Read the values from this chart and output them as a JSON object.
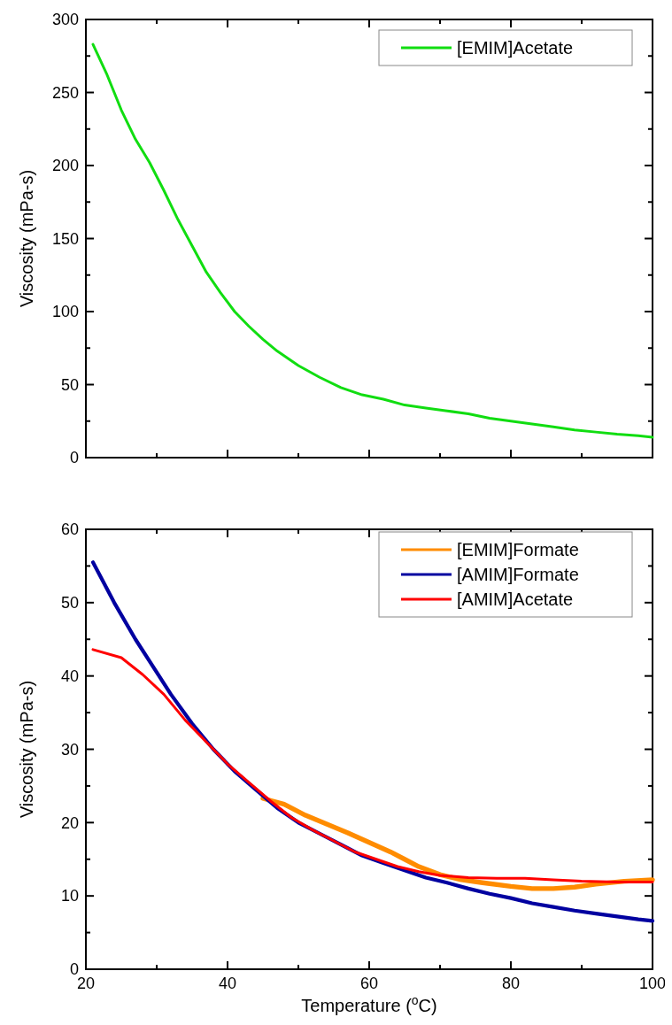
{
  "chart_data": [
    {
      "type": "line",
      "ylabel": "Viscosity (mPa-s)",
      "xlim": [
        20,
        100
      ],
      "ylim": [
        0,
        300
      ],
      "tick_labels": "y",
      "legend": "top right",
      "line_style": "solid",
      "xticks": [
        20,
        {
          "value": 30,
          "label": null
        },
        40,
        {
          "value": 50,
          "label": null
        },
        60,
        {
          "value": 70,
          "label": null
        },
        80,
        {
          "value": 90,
          "label": null
        },
        100
      ],
      "yticks": [
        0,
        {
          "value": 25,
          "label": null
        },
        50,
        {
          "value": 75,
          "label": null
        },
        100,
        {
          "value": 125,
          "label": null
        },
        150,
        {
          "value": 175,
          "label": null
        },
        200,
        {
          "value": 225,
          "label": null
        },
        250,
        {
          "value": 275,
          "label": null
        },
        300
      ],
      "series": [
        {
          "name": "[EMIM]Acetate",
          "color": "#11dd11",
          "x": [
            21,
            23,
            25,
            27,
            29,
            31,
            33,
            35,
            37,
            39,
            41,
            43,
            45,
            47,
            50,
            53,
            56,
            59,
            62,
            65,
            68,
            71,
            74,
            77,
            80,
            83,
            86,
            89,
            92,
            95,
            98,
            100
          ],
          "values": [
            283,
            262,
            238,
            218,
            202,
            183,
            163,
            145,
            127,
            113,
            100,
            90,
            81,
            73,
            63,
            55,
            48,
            43,
            40,
            36,
            34,
            32,
            30,
            27,
            25,
            23,
            21,
            19,
            17.5,
            16,
            15,
            14
          ]
        }
      ]
    },
    {
      "type": "line",
      "xlabel": "Temperature ($^{o}$C)",
      "ylabel": "Viscosity (mPa-s)",
      "xlim": [
        20,
        100
      ],
      "ylim": [
        0,
        60
      ],
      "legend": "top right",
      "line_style": "solid",
      "xticks": [
        20,
        {
          "value": 30,
          "label": null
        },
        40,
        {
          "value": 50,
          "label": null
        },
        60,
        {
          "value": 70,
          "label": null
        },
        80,
        {
          "value": 90,
          "label": null
        },
        100
      ],
      "yticks": [
        0,
        {
          "value": 5,
          "label": null
        },
        10,
        {
          "value": 15,
          "label": null
        },
        20,
        {
          "value": 25,
          "label": null
        },
        30,
        {
          "value": 35,
          "label": null
        },
        40,
        {
          "value": 45,
          "label": null
        },
        50,
        {
          "value": 55,
          "label": null
        },
        60
      ],
      "series": [
        {
          "name": "[EMIM]Formate",
          "color": "#ff8c00",
          "x": [
            45,
            48,
            51,
            54,
            57,
            60,
            63,
            65,
            67,
            70,
            73,
            76,
            80,
            83,
            86,
            89,
            92,
            96,
            100
          ],
          "values": [
            23.3,
            22.5,
            21,
            19.8,
            18.6,
            17.3,
            16,
            15,
            14,
            12.9,
            12.2,
            11.8,
            11.3,
            11,
            11,
            11.2,
            11.6,
            12,
            12.2
          ]
        },
        {
          "name": "[AMIM]Formate",
          "color": "#0000a0",
          "x": [
            21,
            24,
            27,
            29,
            32,
            35,
            38,
            41,
            44,
            47,
            50,
            53,
            56,
            59,
            62,
            65,
            68,
            71,
            74,
            77,
            80,
            83,
            86,
            89,
            92,
            95,
            98,
            100
          ],
          "values": [
            55.5,
            50,
            45,
            42,
            37.5,
            33.5,
            30,
            27,
            24.5,
            22,
            20,
            18.5,
            17,
            15.5,
            14.5,
            13.5,
            12.5,
            11.8,
            11,
            10.3,
            9.7,
            9,
            8.5,
            8,
            7.6,
            7.2,
            6.8,
            6.6
          ]
        },
        {
          "name": "[AMIM]Acetate",
          "color": "#ff0000",
          "x": [
            21,
            25,
            28,
            31,
            34,
            37,
            40,
            43,
            46,
            49,
            52,
            55,
            58,
            61,
            64,
            67,
            70,
            74,
            78,
            82,
            86,
            90,
            95,
            100
          ],
          "values": [
            43.6,
            42.5,
            40.2,
            37.5,
            34,
            31,
            28,
            25.5,
            23,
            20.7,
            19,
            17.5,
            16,
            15,
            14,
            13.3,
            12.8,
            12.5,
            12.4,
            12.4,
            12.2,
            12,
            11.9,
            11.9
          ]
        }
      ]
    }
  ]
}
